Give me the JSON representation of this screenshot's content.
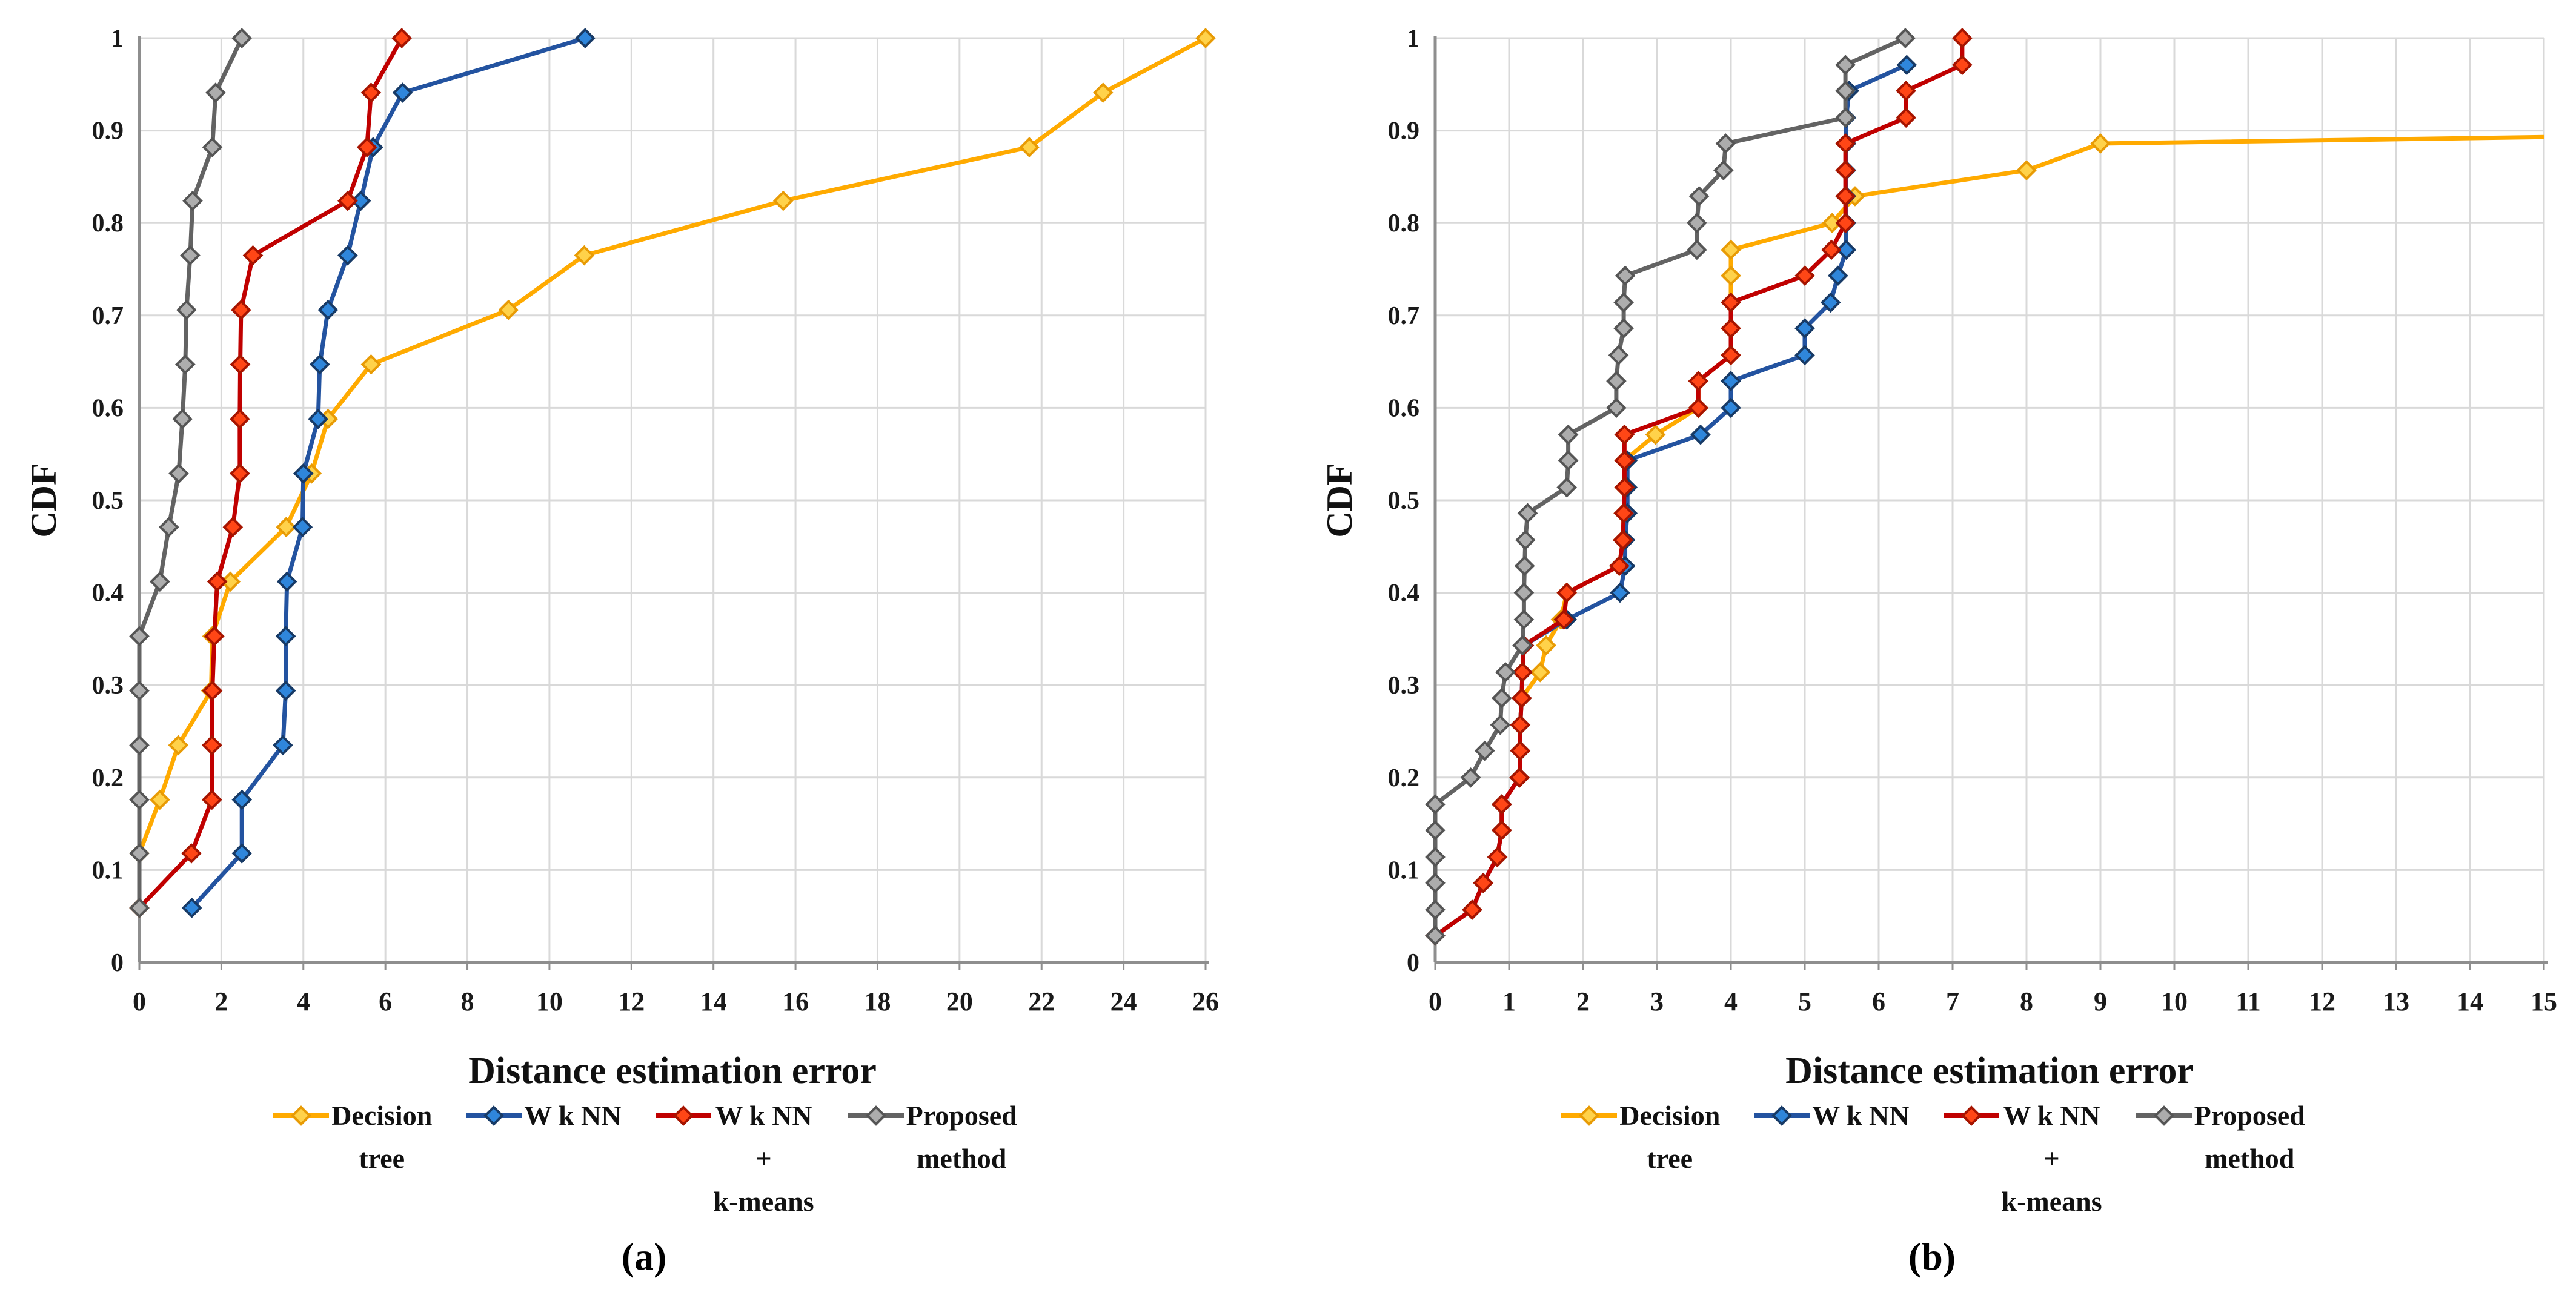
{
  "figure_type": "two-panel CDF line chart",
  "colors": {
    "decision_tree_line": "#FFAA00",
    "decision_tree_marker": "#FFD24A",
    "decision_tree_marker_edge": "#E89B05",
    "wknn_line": "#2353A0",
    "wknn_marker": "#2F86DB",
    "wknn_marker_edge": "#173A66",
    "wknn_kmeans_line": "#C00000",
    "wknn_kmeans_marker": "#FF4616",
    "wknn_kmeans_marker_edge": "#A61400",
    "proposed_line": "#636363",
    "proposed_marker": "#ADADAD",
    "proposed_marker_edge": "#555555",
    "gridline": "#D9D9D9",
    "axis": "#8E8E8E",
    "text": "#1A1A1A"
  },
  "legend": {
    "entries": [
      {
        "series": "decision_tree",
        "lines": [
          "Decision",
          "tree"
        ]
      },
      {
        "series": "wknn",
        "lines": [
          "W k NN"
        ]
      },
      {
        "series": "wknn_kmeans",
        "lines": [
          "W k NN",
          "+",
          "k-means"
        ]
      },
      {
        "series": "proposed",
        "lines": [
          "Proposed",
          "method"
        ]
      }
    ]
  },
  "chart_data": [
    {
      "type": "line",
      "caption": "(a)",
      "xlabel": "Distance estimation error",
      "ylabel": "CDF",
      "xlim": [
        0,
        26
      ],
      "ylim": [
        0,
        1
      ],
      "xticks": [
        0,
        2,
        4,
        6,
        8,
        10,
        12,
        14,
        16,
        18,
        20,
        22,
        24,
        26
      ],
      "yticks": [
        "0",
        "0.1",
        "0.2",
        "0.3",
        "0.4",
        "0.5",
        "0.6",
        "0.7",
        "0.8",
        "0.9",
        "1"
      ],
      "grid": true,
      "legend_position": "bottom",
      "series": [
        {
          "name": "Decision tree",
          "key": "decision_tree",
          "points": [
            [
              0,
              0.059
            ],
            [
              0,
              0.118
            ],
            [
              0.5,
              0.176
            ],
            [
              0.95,
              0.235
            ],
            [
              1.75,
              0.294
            ],
            [
              1.78,
              0.353
            ],
            [
              2.22,
              0.412
            ],
            [
              3.58,
              0.471
            ],
            [
              4.2,
              0.529
            ],
            [
              4.6,
              0.588
            ],
            [
              5.65,
              0.647
            ],
            [
              9.0,
              0.706
            ],
            [
              10.85,
              0.765
            ],
            [
              15.7,
              0.824
            ],
            [
              21.7,
              0.882
            ],
            [
              23.5,
              0.941
            ],
            [
              26.0,
              1.0
            ]
          ]
        },
        {
          "name": "W k NN",
          "key": "wknn",
          "points": [
            [
              1.28,
              0.059
            ],
            [
              2.5,
              0.118
            ],
            [
              2.5,
              0.176
            ],
            [
              3.5,
              0.235
            ],
            [
              3.57,
              0.294
            ],
            [
              3.57,
              0.353
            ],
            [
              3.6,
              0.412
            ],
            [
              3.98,
              0.471
            ],
            [
              4.0,
              0.529
            ],
            [
              4.36,
              0.588
            ],
            [
              4.4,
              0.647
            ],
            [
              4.6,
              0.706
            ],
            [
              5.08,
              0.765
            ],
            [
              5.4,
              0.824
            ],
            [
              5.7,
              0.882
            ],
            [
              6.42,
              0.941
            ],
            [
              10.87,
              1.0
            ]
          ]
        },
        {
          "name": "W k NN + k-means",
          "key": "wknn_kmeans",
          "points": [
            [
              0,
              0.059
            ],
            [
              1.27,
              0.118
            ],
            [
              1.77,
              0.176
            ],
            [
              1.77,
              0.235
            ],
            [
              1.78,
              0.294
            ],
            [
              1.83,
              0.353
            ],
            [
              1.9,
              0.412
            ],
            [
              2.28,
              0.471
            ],
            [
              2.45,
              0.529
            ],
            [
              2.45,
              0.588
            ],
            [
              2.46,
              0.647
            ],
            [
              2.48,
              0.706
            ],
            [
              2.77,
              0.765
            ],
            [
              5.08,
              0.824
            ],
            [
              5.55,
              0.882
            ],
            [
              5.65,
              0.941
            ],
            [
              6.4,
              1.0
            ]
          ]
        },
        {
          "name": "Proposed method",
          "key": "proposed",
          "points": [
            [
              0,
              0.059
            ],
            [
              0,
              0.118
            ],
            [
              0,
              0.176
            ],
            [
              0,
              0.235
            ],
            [
              0,
              0.294
            ],
            [
              0,
              0.353
            ],
            [
              0.5,
              0.412
            ],
            [
              0.72,
              0.471
            ],
            [
              0.96,
              0.529
            ],
            [
              1.05,
              0.588
            ],
            [
              1.12,
              0.647
            ],
            [
              1.15,
              0.706
            ],
            [
              1.24,
              0.765
            ],
            [
              1.3,
              0.824
            ],
            [
              1.78,
              0.882
            ],
            [
              1.86,
              0.941
            ],
            [
              2.5,
              1.0
            ]
          ]
        }
      ]
    },
    {
      "type": "line",
      "caption": "(b)",
      "xlabel": "Distance estimation error",
      "ylabel": "CDF",
      "xlim": [
        0,
        15
      ],
      "ylim": [
        0,
        1
      ],
      "xticks": [
        0,
        1,
        2,
        3,
        4,
        5,
        6,
        7,
        8,
        9,
        10,
        11,
        12,
        13,
        14,
        15
      ],
      "yticks": [
        "0",
        "0.1",
        "0.2",
        "0.3",
        "0.4",
        "0.5",
        "0.6",
        "0.7",
        "0.8",
        "0.9",
        "1"
      ],
      "grid": true,
      "legend_position": "bottom",
      "series": [
        {
          "name": "Decision tree",
          "key": "decision_tree",
          "points": [
            [
              0,
              0.029
            ],
            [
              0.5,
              0.057
            ],
            [
              0.65,
              0.086
            ],
            [
              0.84,
              0.114
            ],
            [
              0.9,
              0.143
            ],
            [
              0.9,
              0.171
            ],
            [
              1.14,
              0.2
            ],
            [
              1.15,
              0.229
            ],
            [
              1.15,
              0.257
            ],
            [
              1.17,
              0.286
            ],
            [
              1.42,
              0.314
            ],
            [
              1.5,
              0.343
            ],
            [
              1.7,
              0.371
            ],
            [
              1.78,
              0.4
            ],
            [
              2.49,
              0.429
            ],
            [
              2.54,
              0.457
            ],
            [
              2.55,
              0.486
            ],
            [
              2.56,
              0.514
            ],
            [
              2.56,
              0.543
            ],
            [
              2.98,
              0.571
            ],
            [
              3.56,
              0.6
            ],
            [
              3.56,
              0.629
            ],
            [
              4.0,
              0.657
            ],
            [
              4.0,
              0.686
            ],
            [
              4.0,
              0.714
            ],
            [
              4.0,
              0.743
            ],
            [
              4.0,
              0.771
            ],
            [
              5.37,
              0.8
            ],
            [
              5.68,
              0.829
            ],
            [
              8.0,
              0.857
            ],
            [
              9.0,
              0.886
            ]
          ],
          "tail": [
            15,
            0.893
          ]
        },
        {
          "name": "W k NN",
          "key": "wknn",
          "points": [
            [
              0,
              0.029
            ],
            [
              0.5,
              0.057
            ],
            [
              0.65,
              0.086
            ],
            [
              0.84,
              0.114
            ],
            [
              0.9,
              0.143
            ],
            [
              0.9,
              0.171
            ],
            [
              1.14,
              0.2
            ],
            [
              1.15,
              0.229
            ],
            [
              1.15,
              0.257
            ],
            [
              1.17,
              0.286
            ],
            [
              1.18,
              0.314
            ],
            [
              1.2,
              0.343
            ],
            [
              1.78,
              0.371
            ],
            [
              2.5,
              0.4
            ],
            [
              2.57,
              0.429
            ],
            [
              2.57,
              0.457
            ],
            [
              2.6,
              0.486
            ],
            [
              2.6,
              0.514
            ],
            [
              2.6,
              0.543
            ],
            [
              3.59,
              0.571
            ],
            [
              4.0,
              0.6
            ],
            [
              4.0,
              0.629
            ],
            [
              5.0,
              0.657
            ],
            [
              5.0,
              0.686
            ],
            [
              5.35,
              0.714
            ],
            [
              5.45,
              0.743
            ],
            [
              5.56,
              0.771
            ],
            [
              5.56,
              0.8
            ],
            [
              5.56,
              0.829
            ],
            [
              5.56,
              0.857
            ],
            [
              5.56,
              0.886
            ],
            [
              5.56,
              0.914
            ],
            [
              5.6,
              0.943
            ],
            [
              6.38,
              0.971
            ]
          ]
        },
        {
          "name": "W k NN + k-means",
          "key": "wknn_kmeans",
          "points": [
            [
              0,
              0.029
            ],
            [
              0.5,
              0.057
            ],
            [
              0.65,
              0.086
            ],
            [
              0.84,
              0.114
            ],
            [
              0.9,
              0.143
            ],
            [
              0.9,
              0.171
            ],
            [
              1.14,
              0.2
            ],
            [
              1.15,
              0.229
            ],
            [
              1.15,
              0.257
            ],
            [
              1.17,
              0.286
            ],
            [
              1.18,
              0.314
            ],
            [
              1.2,
              0.343
            ],
            [
              1.74,
              0.371
            ],
            [
              1.78,
              0.4
            ],
            [
              2.49,
              0.429
            ],
            [
              2.54,
              0.457
            ],
            [
              2.55,
              0.486
            ],
            [
              2.56,
              0.514
            ],
            [
              2.56,
              0.543
            ],
            [
              2.56,
              0.571
            ],
            [
              3.56,
              0.6
            ],
            [
              3.56,
              0.629
            ],
            [
              4.0,
              0.657
            ],
            [
              4.0,
              0.686
            ],
            [
              4.0,
              0.714
            ],
            [
              5.0,
              0.743
            ],
            [
              5.36,
              0.771
            ],
            [
              5.55,
              0.8
            ],
            [
              5.55,
              0.829
            ],
            [
              5.55,
              0.857
            ],
            [
              5.55,
              0.886
            ],
            [
              6.37,
              0.914
            ],
            [
              6.37,
              0.943
            ],
            [
              7.13,
              0.971
            ],
            [
              7.13,
              1.0
            ]
          ]
        },
        {
          "name": "Proposed method",
          "key": "proposed",
          "points": [
            [
              0,
              0.029
            ],
            [
              0,
              0.057
            ],
            [
              0,
              0.086
            ],
            [
              0,
              0.114
            ],
            [
              0,
              0.143
            ],
            [
              0,
              0.171
            ],
            [
              0.48,
              0.2
            ],
            [
              0.67,
              0.229
            ],
            [
              0.88,
              0.257
            ],
            [
              0.9,
              0.286
            ],
            [
              0.95,
              0.314
            ],
            [
              1.18,
              0.343
            ],
            [
              1.2,
              0.371
            ],
            [
              1.2,
              0.4
            ],
            [
              1.21,
              0.429
            ],
            [
              1.22,
              0.457
            ],
            [
              1.25,
              0.486
            ],
            [
              1.78,
              0.514
            ],
            [
              1.8,
              0.543
            ],
            [
              1.8,
              0.571
            ],
            [
              2.45,
              0.6
            ],
            [
              2.45,
              0.629
            ],
            [
              2.48,
              0.657
            ],
            [
              2.55,
              0.686
            ],
            [
              2.55,
              0.714
            ],
            [
              2.57,
              0.743
            ],
            [
              3.54,
              0.771
            ],
            [
              3.54,
              0.8
            ],
            [
              3.57,
              0.829
            ],
            [
              3.9,
              0.857
            ],
            [
              3.93,
              0.886
            ],
            [
              5.55,
              0.914
            ],
            [
              5.55,
              0.943
            ],
            [
              5.55,
              0.971
            ],
            [
              6.36,
              1.0
            ]
          ]
        }
      ]
    }
  ]
}
